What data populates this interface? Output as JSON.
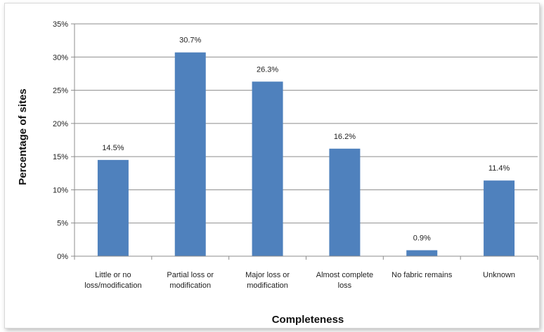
{
  "chart_data": {
    "type": "bar",
    "title": "",
    "xlabel": "Completeness",
    "ylabel": "Percentage of sites",
    "categories": [
      [
        "Little or no",
        "loss/modification"
      ],
      [
        "Partial loss or",
        "modification"
      ],
      [
        "Major loss or",
        "modification"
      ],
      [
        "Almost complete",
        "loss"
      ],
      [
        "No fabric remains"
      ],
      [
        "Unknown"
      ]
    ],
    "values": [
      14.5,
      30.7,
      26.3,
      16.2,
      0.9,
      11.4
    ],
    "data_labels": [
      "14.5%",
      "30.7%",
      "26.3%",
      "16.2%",
      "0.9%",
      "11.4%"
    ],
    "ylim": [
      0,
      35
    ],
    "yticks": [
      0,
      5,
      10,
      15,
      20,
      25,
      30,
      35
    ],
    "ytick_labels": [
      "0%",
      "5%",
      "10%",
      "15%",
      "20%",
      "25%",
      "30%",
      "35%"
    ],
    "grid": true,
    "legend": "none",
    "bar_color": "#4f81bd",
    "grid_color": "#8c8c8c"
  }
}
